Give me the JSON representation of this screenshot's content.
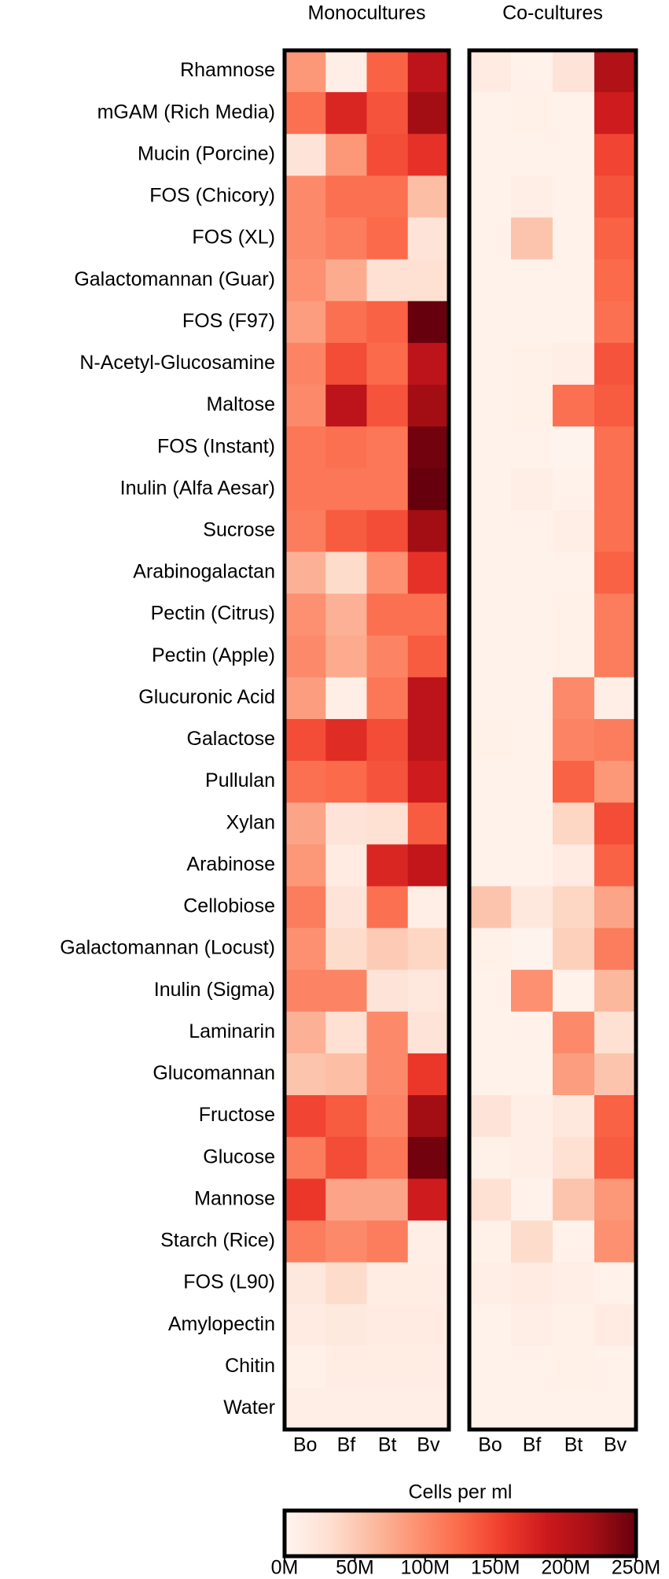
{
  "chart_data": {
    "type": "heatmap",
    "row_labels": [
      "Rhamnose",
      "mGAM (Rich Media)",
      "Mucin (Porcine)",
      "FOS (Chicory)",
      "FOS (XL)",
      "Galactomannan (Guar)",
      "FOS (F97)",
      "N-Acetyl-Glucosamine",
      "Maltose",
      "FOS (Instant)",
      "Inulin (Alfa Aesar)",
      "Sucrose",
      "Arabinogalactan",
      "Pectin (Citrus)",
      "Pectin (Apple)",
      "Glucuronic Acid",
      "Galactose",
      "Pullulan",
      "Xylan",
      "Arabinose",
      "Cellobiose",
      "Galactomannan (Locust)",
      "Inulin (Sigma)",
      "Laminarin",
      "Glucomannan",
      "Fructose",
      "Glucose",
      "Mannose",
      "Starch (Rice)",
      "FOS (L90)",
      "Amylopectin",
      "Chitin",
      "Water"
    ],
    "colors": [
      "#fff5f0",
      "#fee0d2",
      "#fcbba1",
      "#fc9272",
      "#fb6a4a",
      "#ef3b2c",
      "#cb181d",
      "#a50f15",
      "#67000d"
    ],
    "panels": [
      {
        "title": "Monocultures",
        "columns": [
          "Bo",
          "Bf",
          "Bt",
          "Bv"
        ],
        "values": [
          [
            90000000.0,
            10000000.0,
            130000000.0,
            200000000.0
          ],
          [
            120000000.0,
            175000000.0,
            140000000.0,
            220000000.0
          ],
          [
            25000000.0,
            90000000.0,
            145000000.0,
            165000000.0
          ],
          [
            100000000.0,
            120000000.0,
            120000000.0,
            60000000.0
          ],
          [
            100000000.0,
            110000000.0,
            125000000.0,
            25000000.0
          ],
          [
            95000000.0,
            75000000.0,
            30000000.0,
            30000000.0
          ],
          [
            85000000.0,
            120000000.0,
            130000000.0,
            250000000.0
          ],
          [
            105000000.0,
            145000000.0,
            125000000.0,
            200000000.0
          ],
          [
            100000000.0,
            200000000.0,
            140000000.0,
            220000000.0
          ],
          [
            115000000.0,
            120000000.0,
            115000000.0,
            245000000.0
          ],
          [
            115000000.0,
            115000000.0,
            115000000.0,
            250000000.0
          ],
          [
            110000000.0,
            135000000.0,
            145000000.0,
            220000000.0
          ],
          [
            70000000.0,
            35000000.0,
            95000000.0,
            165000000.0
          ],
          [
            95000000.0,
            70000000.0,
            120000000.0,
            120000000.0
          ],
          [
            100000000.0,
            75000000.0,
            105000000.0,
            135000000.0
          ],
          [
            85000000.0,
            10000000.0,
            115000000.0,
            200000000.0
          ],
          [
            145000000.0,
            170000000.0,
            145000000.0,
            200000000.0
          ],
          [
            120000000.0,
            125000000.0,
            140000000.0,
            185000000.0
          ],
          [
            80000000.0,
            25000000.0,
            30000000.0,
            135000000.0
          ],
          [
            90000000.0,
            15000000.0,
            175000000.0,
            195000000.0
          ],
          [
            110000000.0,
            25000000.0,
            120000000.0,
            10000000.0
          ],
          [
            95000000.0,
            35000000.0,
            50000000.0,
            40000000.0
          ],
          [
            105000000.0,
            105000000.0,
            25000000.0,
            20000000.0
          ],
          [
            70000000.0,
            30000000.0,
            100000000.0,
            25000000.0
          ],
          [
            55000000.0,
            60000000.0,
            100000000.0,
            160000000.0
          ],
          [
            150000000.0,
            135000000.0,
            105000000.0,
            220000000.0
          ],
          [
            110000000.0,
            145000000.0,
            115000000.0,
            245000000.0
          ],
          [
            160000000.0,
            80000000.0,
            80000000.0,
            185000000.0
          ],
          [
            110000000.0,
            100000000.0,
            110000000.0,
            10000000.0
          ],
          [
            20000000.0,
            35000000.0,
            12000000.0,
            12000000.0
          ],
          [
            15000000.0,
            18000000.0,
            15000000.0,
            15000000.0
          ],
          [
            8000000.0,
            12000000.0,
            12000000.0,
            12000000.0
          ],
          [
            10000000.0,
            10000000.0,
            10000000.0,
            10000000.0
          ]
        ]
      },
      {
        "title": "Co-cultures",
        "columns": [
          "Bo",
          "Bf",
          "Bt",
          "Bv"
        ],
        "values": [
          [
            15000000.0,
            5000000.0,
            25000000.0,
            210000000.0
          ],
          [
            5000000.0,
            8000000.0,
            5000000.0,
            185000000.0
          ],
          [
            5000000.0,
            5000000.0,
            5000000.0,
            150000000.0
          ],
          [
            5000000.0,
            10000000.0,
            5000000.0,
            140000000.0
          ],
          [
            5000000.0,
            55000000.0,
            5000000.0,
            130000000.0
          ],
          [
            5000000.0,
            5000000.0,
            5000000.0,
            125000000.0
          ],
          [
            5000000.0,
            5000000.0,
            5000000.0,
            120000000.0
          ],
          [
            5000000.0,
            8000000.0,
            10000000.0,
            140000000.0
          ],
          [
            5000000.0,
            8000000.0,
            120000000.0,
            135000000.0
          ],
          [
            5000000.0,
            5000000.0,
            3000000.0,
            120000000.0
          ],
          [
            5000000.0,
            10000000.0,
            5000000.0,
            120000000.0
          ],
          [
            5000000.0,
            5000000.0,
            10000000.0,
            120000000.0
          ],
          [
            5000000.0,
            5000000.0,
            5000000.0,
            130000000.0
          ],
          [
            5000000.0,
            5000000.0,
            8000000.0,
            110000000.0
          ],
          [
            5000000.0,
            5000000.0,
            8000000.0,
            110000000.0
          ],
          [
            5000000.0,
            5000000.0,
            100000000.0,
            10000000.0
          ],
          [
            8000000.0,
            5000000.0,
            105000000.0,
            110000000.0
          ],
          [
            5000000.0,
            5000000.0,
            130000000.0,
            90000000.0
          ],
          [
            5000000.0,
            5000000.0,
            40000000.0,
            145000000.0
          ],
          [
            5000000.0,
            5000000.0,
            15000000.0,
            130000000.0
          ],
          [
            55000000.0,
            20000000.0,
            40000000.0,
            80000000.0
          ],
          [
            8000000.0,
            3000000.0,
            45000000.0,
            110000000.0
          ],
          [
            5000000.0,
            95000000.0,
            5000000.0,
            65000000.0
          ],
          [
            5000000.0,
            5000000.0,
            100000000.0,
            30000000.0
          ],
          [
            5000000.0,
            5000000.0,
            85000000.0,
            55000000.0
          ],
          [
            25000000.0,
            10000000.0,
            20000000.0,
            130000000.0
          ],
          [
            8000000.0,
            10000000.0,
            30000000.0,
            135000000.0
          ],
          [
            30000000.0,
            5000000.0,
            55000000.0,
            90000000.0
          ],
          [
            8000000.0,
            35000000.0,
            5000000.0,
            95000000.0
          ],
          [
            10000000.0,
            15000000.0,
            10000000.0,
            5000000.0
          ],
          [
            5000000.0,
            10000000.0,
            8000000.0,
            15000000.0
          ],
          [
            5000000.0,
            5000000.0,
            8000000.0,
            5000000.0
          ],
          [
            5000000.0,
            5000000.0,
            5000000.0,
            5000000.0
          ]
        ]
      }
    ],
    "colorbar": {
      "label": "Cells per ml",
      "lim": [
        0,
        250000000
      ],
      "ticks": [
        {
          "value": 0,
          "label": "0M"
        },
        {
          "value": 50000000,
          "label": "50M"
        },
        {
          "value": 100000000,
          "label": "100M"
        },
        {
          "value": 150000000,
          "label": "150M"
        },
        {
          "value": 200000000,
          "label": "200M"
        },
        {
          "value": 250000000,
          "label": "250M"
        }
      ]
    }
  }
}
